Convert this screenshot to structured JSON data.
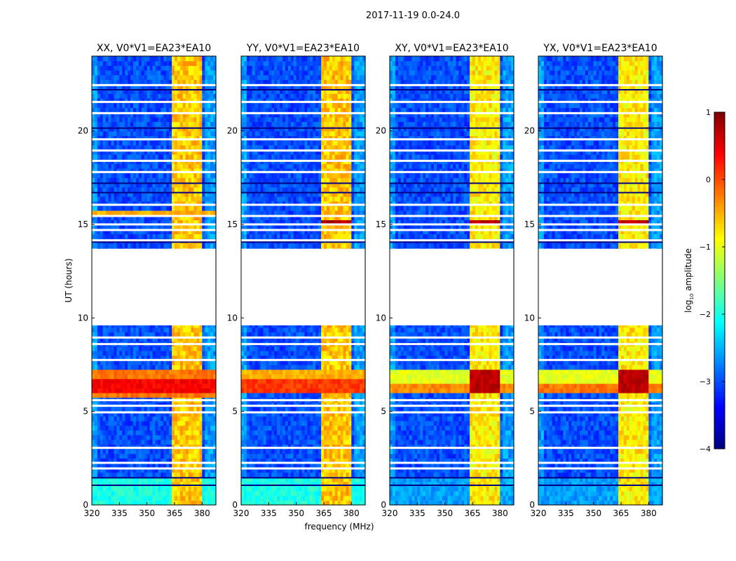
{
  "chart_data": {
    "type": "heatmap",
    "title": "2017-11-19 0.0-24.0",
    "xlabel": "frequency (MHz)",
    "ylabel": "UT (hours)",
    "xlim": [
      320,
      387.5
    ],
    "ylim": [
      0,
      24
    ],
    "xticks": [
      "320",
      "335",
      "350",
      "365",
      "380"
    ],
    "yticks": [
      "0",
      "5",
      "10",
      "15",
      "20"
    ],
    "colormap": "jet",
    "colorbar": {
      "label": "log10 amplitude",
      "label_main": "log",
      "label_sub": "10",
      "label_rest": " amplitude",
      "vmin": -4,
      "vmax": 1,
      "ticks": [
        "1",
        "0",
        "−1",
        "−2",
        "−3",
        "−4"
      ]
    },
    "baseline_value": -3,
    "flagged_hours": [
      [
        9.6,
        13.7
      ]
    ],
    "flag_lines_hours": [
      22.45,
      21.55,
      20.95,
      19.55,
      18.95,
      18.4,
      17.8,
      16.05,
      15.45,
      15.0,
      14.7,
      14.15,
      8.95,
      8.6,
      7.75,
      5.6,
      5.3,
      4.95,
      3.05,
      2.25,
      1.95
    ],
    "dropout_lines_hours": [
      22.2,
      20.15,
      17.2,
      16.7,
      14.05,
      1.45,
      1.05
    ],
    "rfi_columns_mhz": [
      [
        363,
        366.3
      ],
      [
        367,
        370.8
      ],
      [
        371.5,
        375.3
      ],
      [
        376.2,
        379.8
      ]
    ],
    "panels": [
      {
        "title": "XX, V0*V1=EA23*EA10",
        "rfi_level": -0.6,
        "low_band": {
          "hours": [
            0,
            1.4
          ],
          "value": -2.0
        },
        "events": [
          {
            "hours": [
              5.8,
              7.3
            ],
            "mhz": [
              320,
              387.5
            ],
            "value": -0.2
          },
          {
            "hours": [
              6.0,
              6.8
            ],
            "mhz": [
              320,
              387.5
            ],
            "value": 0.4
          },
          {
            "hours": [
              15.55,
              15.65
            ],
            "mhz": [
              320,
              387.5
            ],
            "value": -0.5
          }
        ]
      },
      {
        "title": "YY, V0*V1=EA23*EA10",
        "rfi_level": -0.6,
        "low_band": {
          "hours": [
            0,
            1.4
          ],
          "value": -2.0
        },
        "events": [
          {
            "hours": [
              5.9,
              7.2
            ],
            "mhz": [
              320,
              387.5
            ],
            "value": -0.5
          },
          {
            "hours": [
              6.1,
              6.7
            ],
            "mhz": [
              320,
              387.5
            ],
            "value": 0.1
          },
          {
            "hours": [
              15.0,
              15.2
            ],
            "mhz": [
              363,
              380
            ],
            "value": 0.7
          }
        ]
      },
      {
        "title": "XY, V0*V1=EA23*EA10",
        "rfi_level": -0.8,
        "low_band": {
          "hours": [
            0,
            1.4
          ],
          "value": -2.6
        },
        "events": [
          {
            "hours": [
              5.9,
              7.3
            ],
            "mhz": [
              320,
              387.5
            ],
            "value": -1.0
          },
          {
            "hours": [
              6.1,
              6.6
            ],
            "mhz": [
              320,
              387.5
            ],
            "value": -0.3
          },
          {
            "hours": [
              6.1,
              7.3
            ],
            "mhz": [
              363,
              380
            ],
            "value": 0.7
          },
          {
            "hours": [
              15.0,
              15.2
            ],
            "mhz": [
              363,
              380
            ],
            "value": 0.7
          }
        ]
      },
      {
        "title": "YX, V0*V1=EA23*EA10",
        "rfi_level": -0.8,
        "low_band": {
          "hours": [
            0,
            1.4
          ],
          "value": -2.6
        },
        "events": [
          {
            "hours": [
              5.9,
              7.3
            ],
            "mhz": [
              320,
              387.5
            ],
            "value": -1.0
          },
          {
            "hours": [
              6.1,
              6.6
            ],
            "mhz": [
              320,
              387.5
            ],
            "value": -0.2
          },
          {
            "hours": [
              6.1,
              7.3
            ],
            "mhz": [
              363,
              380
            ],
            "value": 0.7
          },
          {
            "hours": [
              15.0,
              15.2
            ],
            "mhz": [
              363,
              380
            ],
            "value": 0.7
          }
        ]
      }
    ]
  }
}
